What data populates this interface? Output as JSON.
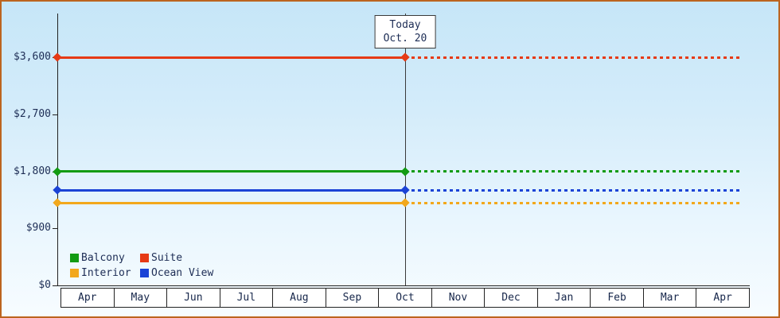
{
  "chart_data": {
    "type": "line",
    "title": "",
    "xlabel": "",
    "ylabel": "",
    "x_categories": [
      "Apr",
      "May",
      "Jun",
      "Jul",
      "Aug",
      "Sep",
      "Oct",
      "Nov",
      "Dec",
      "Jan",
      "Feb",
      "Mar",
      "Apr"
    ],
    "ylim": [
      0,
      3600
    ],
    "ytick_values": [
      0,
      900,
      1800,
      2700,
      3600
    ],
    "ytick_labels": [
      "$0",
      "$900",
      "$1,800",
      "$2,700",
      "$3,600"
    ],
    "grid": "today-vertical-line-only",
    "today_annotation": {
      "line1": "Today",
      "line2": "Oct. 20",
      "x_index": 6.5
    },
    "series": [
      {
        "name": "Suite",
        "value": 3600,
        "color": "#e63a15",
        "style_before_today": "solid",
        "style_after_today": "dotted"
      },
      {
        "name": "Balcony",
        "value": 1800,
        "color": "#129b12",
        "style_before_today": "solid",
        "style_after_today": "dotted"
      },
      {
        "name": "Ocean View",
        "value": 1500,
        "color": "#1b43d6",
        "style_before_today": "solid",
        "style_after_today": "dotted"
      },
      {
        "name": "Interior",
        "value": 1300,
        "color": "#f2a81c",
        "style_before_today": "solid",
        "style_after_today": "dotted"
      }
    ],
    "legend": {
      "position": "bottom-left-inside",
      "items": [
        {
          "label": "Balcony",
          "color": "#129b12"
        },
        {
          "label": "Suite",
          "color": "#e63a15"
        },
        {
          "label": "Interior",
          "color": "#f2a81c"
        },
        {
          "label": "Ocean View",
          "color": "#1b43d6"
        }
      ]
    }
  }
}
